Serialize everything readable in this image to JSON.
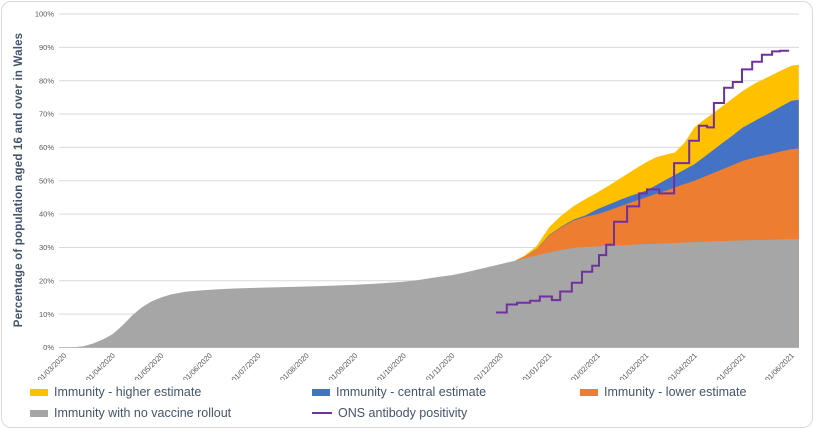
{
  "chart_data": {
    "type": "area+line",
    "title": "",
    "ylabel": "Percentage of population aged 16 and over in Wales",
    "xlabel": "",
    "ylim": [
      0,
      100
    ],
    "y_ticks": [
      "0%",
      "10%",
      "20%",
      "30%",
      "40%",
      "50%",
      "60%",
      "70%",
      "80%",
      "90%",
      "100%"
    ],
    "x_ticks": [
      "01/03/2020",
      "01/04/2020",
      "01/05/2020",
      "01/06/2020",
      "01/07/2020",
      "01/08/2020",
      "01/09/2020",
      "01/10/2020",
      "01/11/2020",
      "01/12/2020",
      "01/01/2021",
      "01/02/2021",
      "01/03/2021",
      "01/04/2021",
      "01/05/2021",
      "01/06/2021"
    ],
    "x_units": "months since 01/03/2020",
    "grid": "horizontal-only",
    "legend_position": "bottom",
    "colors": {
      "grid": "#D9D9D9",
      "axis": "#BFBFBF",
      "tick_label": "#595959",
      "axis_title": "#44546A",
      "legend_text": "#44546A",
      "frame_border": "#D9D9D9",
      "background": "#FFFFFF"
    },
    "series": [
      {
        "name": "Immunity - higher estimate",
        "type": "area",
        "color": "#FFC000",
        "points": [
          [
            9.3,
            26.0
          ],
          [
            9.5,
            27.6
          ],
          [
            9.75,
            30.5
          ],
          [
            10.0,
            36.0
          ],
          [
            10.25,
            39.5
          ],
          [
            10.5,
            42.3
          ],
          [
            10.75,
            44.5
          ],
          [
            11.0,
            46.5
          ],
          [
            11.25,
            48.7
          ],
          [
            11.5,
            51.0
          ],
          [
            11.75,
            53.3
          ],
          [
            12.0,
            55.5
          ],
          [
            12.2,
            57.0
          ],
          [
            12.4,
            57.8
          ],
          [
            12.6,
            58.5
          ],
          [
            12.8,
            61.5
          ],
          [
            13.0,
            66.0
          ],
          [
            13.2,
            68.3
          ],
          [
            13.5,
            71.5
          ],
          [
            13.75,
            74.3
          ],
          [
            14.0,
            77.0
          ],
          [
            14.25,
            79.2
          ],
          [
            14.5,
            81.0
          ],
          [
            14.75,
            82.8
          ],
          [
            15.0,
            84.5
          ],
          [
            15.15,
            84.8
          ]
        ]
      },
      {
        "name": "Immunity - central estimate",
        "type": "area",
        "color": "#4472C4",
        "points": [
          [
            9.3,
            26.0
          ],
          [
            9.5,
            27.3
          ],
          [
            9.75,
            29.6
          ],
          [
            10.0,
            33.7
          ],
          [
            10.25,
            36.2
          ],
          [
            10.5,
            38.3
          ],
          [
            10.75,
            39.6
          ],
          [
            11.0,
            41.5
          ],
          [
            11.25,
            43.0
          ],
          [
            11.5,
            44.5
          ],
          [
            11.75,
            45.8
          ],
          [
            12.0,
            47.0
          ],
          [
            12.25,
            49.0
          ],
          [
            12.5,
            51.0
          ],
          [
            12.75,
            53.0
          ],
          [
            13.0,
            55.0
          ],
          [
            13.25,
            57.7
          ],
          [
            13.5,
            60.5
          ],
          [
            13.75,
            63.2
          ],
          [
            14.0,
            66.0
          ],
          [
            14.25,
            68.0
          ],
          [
            14.5,
            70.0
          ],
          [
            14.75,
            72.0
          ],
          [
            15.0,
            74.0
          ],
          [
            15.15,
            74.3
          ]
        ]
      },
      {
        "name": "Immunity - lower estimate",
        "type": "area",
        "color": "#ED7D31",
        "points": [
          [
            9.3,
            26.0
          ],
          [
            9.5,
            27.3
          ],
          [
            9.75,
            29.5
          ],
          [
            10.0,
            33.5
          ],
          [
            10.25,
            36.0
          ],
          [
            10.5,
            38.0
          ],
          [
            10.75,
            39.2
          ],
          [
            11.0,
            40.0
          ],
          [
            11.25,
            41.2
          ],
          [
            11.5,
            42.5
          ],
          [
            11.75,
            43.8
          ],
          [
            12.0,
            45.0
          ],
          [
            12.25,
            46.3
          ],
          [
            12.5,
            47.5
          ],
          [
            12.75,
            48.8
          ],
          [
            13.0,
            50.0
          ],
          [
            13.25,
            51.5
          ],
          [
            13.5,
            53.0
          ],
          [
            13.75,
            54.5
          ],
          [
            14.0,
            56.0
          ],
          [
            14.25,
            57.0
          ],
          [
            14.5,
            57.8
          ],
          [
            14.75,
            58.7
          ],
          [
            15.0,
            59.5
          ],
          [
            15.15,
            59.7
          ]
        ]
      },
      {
        "name": "Immunity with no vaccine rollout",
        "type": "area",
        "color": "#A6A6A6",
        "points": [
          [
            0,
            0
          ],
          [
            0.2,
            0.1
          ],
          [
            0.4,
            0.4
          ],
          [
            0.6,
            1.2
          ],
          [
            0.8,
            2.4
          ],
          [
            1.0,
            4.0
          ],
          [
            1.2,
            6.5
          ],
          [
            1.4,
            9.5
          ],
          [
            1.6,
            12.0
          ],
          [
            1.8,
            13.8
          ],
          [
            2.0,
            15.0
          ],
          [
            2.2,
            15.9
          ],
          [
            2.5,
            16.7
          ],
          [
            2.8,
            17.1
          ],
          [
            3.1,
            17.4
          ],
          [
            3.5,
            17.7
          ],
          [
            4.0,
            17.9
          ],
          [
            4.5,
            18.1
          ],
          [
            5.0,
            18.3
          ],
          [
            5.5,
            18.5
          ],
          [
            6.0,
            18.8
          ],
          [
            6.5,
            19.2
          ],
          [
            7.0,
            19.7
          ],
          [
            7.3,
            20.2
          ],
          [
            7.6,
            20.9
          ],
          [
            8.0,
            21.7
          ],
          [
            8.3,
            22.6
          ],
          [
            8.6,
            23.6
          ],
          [
            9.0,
            25.0
          ],
          [
            9.3,
            26.0
          ],
          [
            9.6,
            27.1
          ],
          [
            10.0,
            28.5
          ],
          [
            10.3,
            29.4
          ],
          [
            10.6,
            30.0
          ],
          [
            11.0,
            30.3
          ],
          [
            11.5,
            30.7
          ],
          [
            12.0,
            31.0
          ],
          [
            12.5,
            31.3
          ],
          [
            13.0,
            31.6
          ],
          [
            13.5,
            31.9
          ],
          [
            14.0,
            32.1
          ],
          [
            14.5,
            32.3
          ],
          [
            15.0,
            32.5
          ],
          [
            15.15,
            32.5
          ]
        ]
      },
      {
        "name": "ONS antibody positivity",
        "type": "step-line",
        "color": "#7030A0",
        "points": [
          [
            8.91,
            10.5
          ],
          [
            9.13,
            12.9
          ],
          [
            9.34,
            13.4
          ],
          [
            9.61,
            14.0
          ],
          [
            9.81,
            15.3
          ],
          [
            10.06,
            14.2
          ],
          [
            10.23,
            16.8
          ],
          [
            10.47,
            19.4
          ],
          [
            10.68,
            22.7
          ],
          [
            10.89,
            24.5
          ],
          [
            11.03,
            27.7
          ],
          [
            11.18,
            30.8
          ],
          [
            11.34,
            37.7
          ],
          [
            11.61,
            42.3
          ],
          [
            11.86,
            46.2
          ],
          [
            12.02,
            47.4
          ],
          [
            12.27,
            46.2
          ],
          [
            12.58,
            55.3
          ],
          [
            12.89,
            62.0
          ],
          [
            13.09,
            66.5
          ],
          [
            13.26,
            66.0
          ],
          [
            13.4,
            73.3
          ],
          [
            13.61,
            77.9
          ],
          [
            13.79,
            79.6
          ],
          [
            13.98,
            83.4
          ],
          [
            14.19,
            85.7
          ],
          [
            14.39,
            87.8
          ],
          [
            14.6,
            88.8
          ],
          [
            14.76,
            89.0
          ],
          [
            14.95,
            89.0
          ]
        ]
      }
    ]
  }
}
